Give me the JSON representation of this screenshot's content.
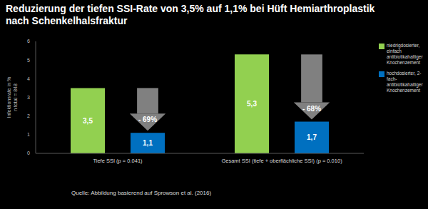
{
  "chart_data": {
    "type": "bar",
    "title": "Reduzierung der tiefen SSI-Rate von 3,5% auf 1,1% bei Hüft Hemiarthroplastik\nnach Schenkelhalsfraktur",
    "y_label": "Infektionsrate in %\nn total = 848",
    "categories": [
      "Tiefe SSI (p = 0.041)",
      "Gesamt SSI (tiefe + oberflächliche SSI) (p = 0.010)"
    ],
    "series": [
      {
        "name": "niedrigdosierter, einfach antibiotikahaltiger Knochenzement",
        "color": "#92d050",
        "values": [
          3.5,
          5.3
        ],
        "value_labels": [
          "3,5",
          "5,3"
        ]
      },
      {
        "name": "hochdosierter, 2-fach-antibiotikahaltiger Knochenzement",
        "color": "#0070c0",
        "values": [
          1.1,
          1.7
        ],
        "value_labels": [
          "1,1",
          "1,7"
        ]
      }
    ],
    "ylim": [
      0,
      6
    ],
    "yticks": [
      0,
      1,
      2,
      3,
      4,
      5,
      6
    ],
    "grid": false,
    "legend": "right",
    "data_labels": true,
    "annotations": [
      "- 69%",
      "- 68%"
    ],
    "source": "Quelle: Abbildung basierend auf Sprowson et al. (2016)"
  }
}
